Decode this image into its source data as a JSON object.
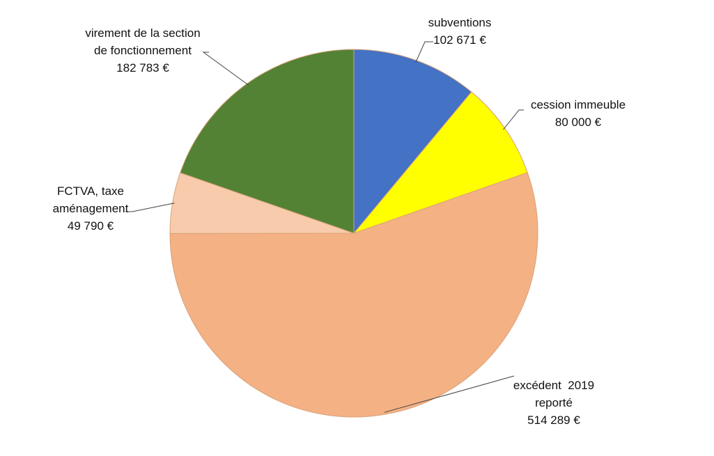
{
  "chart_data": {
    "type": "pie",
    "title": "",
    "slices": [
      {
        "label_lines": [
          "subventions"
        ],
        "value_label": "102 671 €",
        "value": 102671,
        "color": "#4472C4"
      },
      {
        "label_lines": [
          "cession immeuble"
        ],
        "value_label": "80 000 €",
        "value": 80000,
        "color": "#FFFF00"
      },
      {
        "label_lines": [
          "excédent  2019",
          "reporté"
        ],
        "value_label": "514 289 €",
        "value": 514289,
        "color": "#F4B183"
      },
      {
        "label_lines": [
          "FCTVA, taxe",
          "aménagement"
        ],
        "value_label": "49 790 €",
        "value": 49790,
        "color": "#F8CBAD"
      },
      {
        "label_lines": [
          "virement de la section",
          "de fonctionnement"
        ],
        "value_label": "182 783 €",
        "value": 182783,
        "color": "#548235"
      }
    ],
    "start_angle_deg": 0,
    "direction": "clockwise",
    "legend": "none"
  }
}
